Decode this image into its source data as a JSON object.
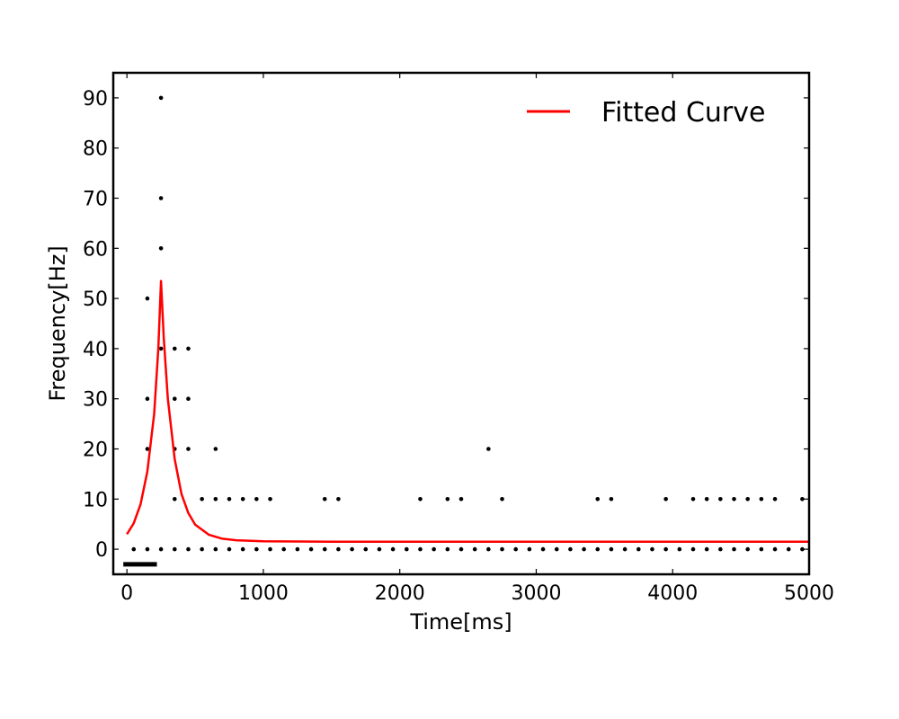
{
  "chart_data": {
    "type": "scatter",
    "title": "",
    "xlabel": "Time[ms]",
    "ylabel": "Frequency[Hz]",
    "xlim": [
      -100,
      5000
    ],
    "ylim": [
      -5,
      95
    ],
    "xticks": [
      0,
      1000,
      2000,
      3000,
      4000,
      5000
    ],
    "yticks": [
      0,
      10,
      20,
      30,
      40,
      50,
      60,
      70,
      80,
      90
    ],
    "xtick_labels": [
      "0",
      "1000",
      "2000",
      "3000",
      "4000",
      "5000"
    ],
    "ytick_labels": [
      "0",
      "10",
      "20",
      "30",
      "40",
      "50",
      "60",
      "70",
      "80",
      "90"
    ],
    "grid": false,
    "legend": {
      "position": "top-right",
      "entries": [
        "Fitted Curve"
      ]
    },
    "colors": {
      "fitted_curve": "#ff0000",
      "points": "#000000",
      "stimulus_bar": "#000000"
    },
    "series": [
      {
        "type": "scatter",
        "points": [
          [
            50,
            0
          ],
          [
            150,
            0
          ],
          [
            250,
            0
          ],
          [
            350,
            0
          ],
          [
            450,
            0
          ],
          [
            550,
            0
          ],
          [
            650,
            0
          ],
          [
            750,
            0
          ],
          [
            850,
            0
          ],
          [
            950,
            0
          ],
          [
            1050,
            0
          ],
          [
            1150,
            0
          ],
          [
            1250,
            0
          ],
          [
            1350,
            0
          ],
          [
            1450,
            0
          ],
          [
            1550,
            0
          ],
          [
            1650,
            0
          ],
          [
            1750,
            0
          ],
          [
            1850,
            0
          ],
          [
            1950,
            0
          ],
          [
            2050,
            0
          ],
          [
            2150,
            0
          ],
          [
            2250,
            0
          ],
          [
            2350,
            0
          ],
          [
            2450,
            0
          ],
          [
            2550,
            0
          ],
          [
            2650,
            0
          ],
          [
            2750,
            0
          ],
          [
            2850,
            0
          ],
          [
            2950,
            0
          ],
          [
            3050,
            0
          ],
          [
            3150,
            0
          ],
          [
            3250,
            0
          ],
          [
            3350,
            0
          ],
          [
            3450,
            0
          ],
          [
            3550,
            0
          ],
          [
            3650,
            0
          ],
          [
            3750,
            0
          ],
          [
            3850,
            0
          ],
          [
            3950,
            0
          ],
          [
            4050,
            0
          ],
          [
            4150,
            0
          ],
          [
            4250,
            0
          ],
          [
            4350,
            0
          ],
          [
            4450,
            0
          ],
          [
            4550,
            0
          ],
          [
            4650,
            0
          ],
          [
            4750,
            0
          ],
          [
            4850,
            0
          ],
          [
            4950,
            0
          ],
          [
            150,
            20
          ],
          [
            150,
            30
          ],
          [
            150,
            50
          ],
          [
            250,
            40
          ],
          [
            250,
            60
          ],
          [
            250,
            70
          ],
          [
            250,
            90
          ],
          [
            350,
            10
          ],
          [
            350,
            20
          ],
          [
            350,
            30
          ],
          [
            350,
            40
          ],
          [
            450,
            20
          ],
          [
            450,
            30
          ],
          [
            450,
            40
          ],
          [
            550,
            10
          ],
          [
            650,
            10
          ],
          [
            650,
            20
          ],
          [
            750,
            10
          ],
          [
            850,
            10
          ],
          [
            950,
            10
          ],
          [
            1050,
            10
          ],
          [
            1450,
            10
          ],
          [
            1550,
            10
          ],
          [
            2150,
            10
          ],
          [
            2350,
            10
          ],
          [
            2450,
            10
          ],
          [
            2650,
            20
          ],
          [
            2750,
            10
          ],
          [
            3450,
            10
          ],
          [
            3550,
            10
          ],
          [
            3950,
            10
          ],
          [
            4150,
            10
          ],
          [
            4250,
            10
          ],
          [
            4350,
            10
          ],
          [
            4450,
            10
          ],
          [
            4550,
            10
          ],
          [
            4650,
            10
          ],
          [
            4750,
            10
          ],
          [
            4950,
            10
          ]
        ]
      },
      {
        "name": "Fitted Curve",
        "type": "line",
        "points": [
          [
            0,
            3.0
          ],
          [
            50,
            5.2
          ],
          [
            100,
            9.0
          ],
          [
            150,
            15.5
          ],
          [
            200,
            27.0
          ],
          [
            230,
            40.0
          ],
          [
            250,
            53.5
          ],
          [
            270,
            42.0
          ],
          [
            300,
            30.0
          ],
          [
            350,
            18.0
          ],
          [
            400,
            11.0
          ],
          [
            450,
            7.2
          ],
          [
            500,
            4.9
          ],
          [
            600,
            2.9
          ],
          [
            700,
            2.1
          ],
          [
            800,
            1.8
          ],
          [
            1000,
            1.6
          ],
          [
            1500,
            1.5
          ],
          [
            2000,
            1.5
          ],
          [
            3000,
            1.5
          ],
          [
            4000,
            1.5
          ],
          [
            5000,
            1.5
          ]
        ]
      }
    ],
    "stimulus_bar": {
      "x_start": 0,
      "x_end": 200,
      "y": -3
    }
  }
}
